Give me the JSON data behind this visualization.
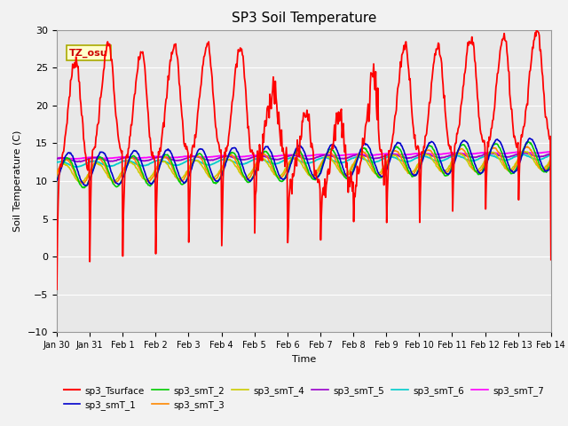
{
  "title": "SP3 Soil Temperature",
  "ylabel": "Soil Temperature (C)",
  "xlabel": "Time",
  "ylim": [
    -10,
    30
  ],
  "annotation": "TZ_osu",
  "series_colors": {
    "sp3_Tsurface": "#FF0000",
    "sp3_smT_1": "#0000CC",
    "sp3_smT_2": "#00CC00",
    "sp3_smT_3": "#FF8800",
    "sp3_smT_4": "#CCCC00",
    "sp3_smT_5": "#9900CC",
    "sp3_smT_6": "#00CCCC",
    "sp3_smT_7": "#FF00FF"
  },
  "bg_color": "#E8E8E8",
  "fig_bg_color": "#F2F2F2",
  "grid_color": "#FFFFFF",
  "tick_labels": [
    "Jan 30",
    "Jan 31",
    "Feb 1",
    "Feb 2",
    "Feb 3",
    "Feb 4",
    "Feb 5",
    "Feb 6",
    "Feb 7",
    "Feb 8",
    "Feb 9",
    "Feb 10",
    "Feb 11",
    "Feb 12",
    "Feb 13",
    "Feb 14"
  ],
  "yticks": [
    -10,
    -5,
    0,
    5,
    10,
    15,
    20,
    25,
    30
  ],
  "legend_order": [
    "sp3_Tsurface",
    "sp3_smT_1",
    "sp3_smT_2",
    "sp3_smT_3",
    "sp3_smT_4",
    "sp3_smT_5",
    "sp3_smT_6",
    "sp3_smT_7"
  ]
}
